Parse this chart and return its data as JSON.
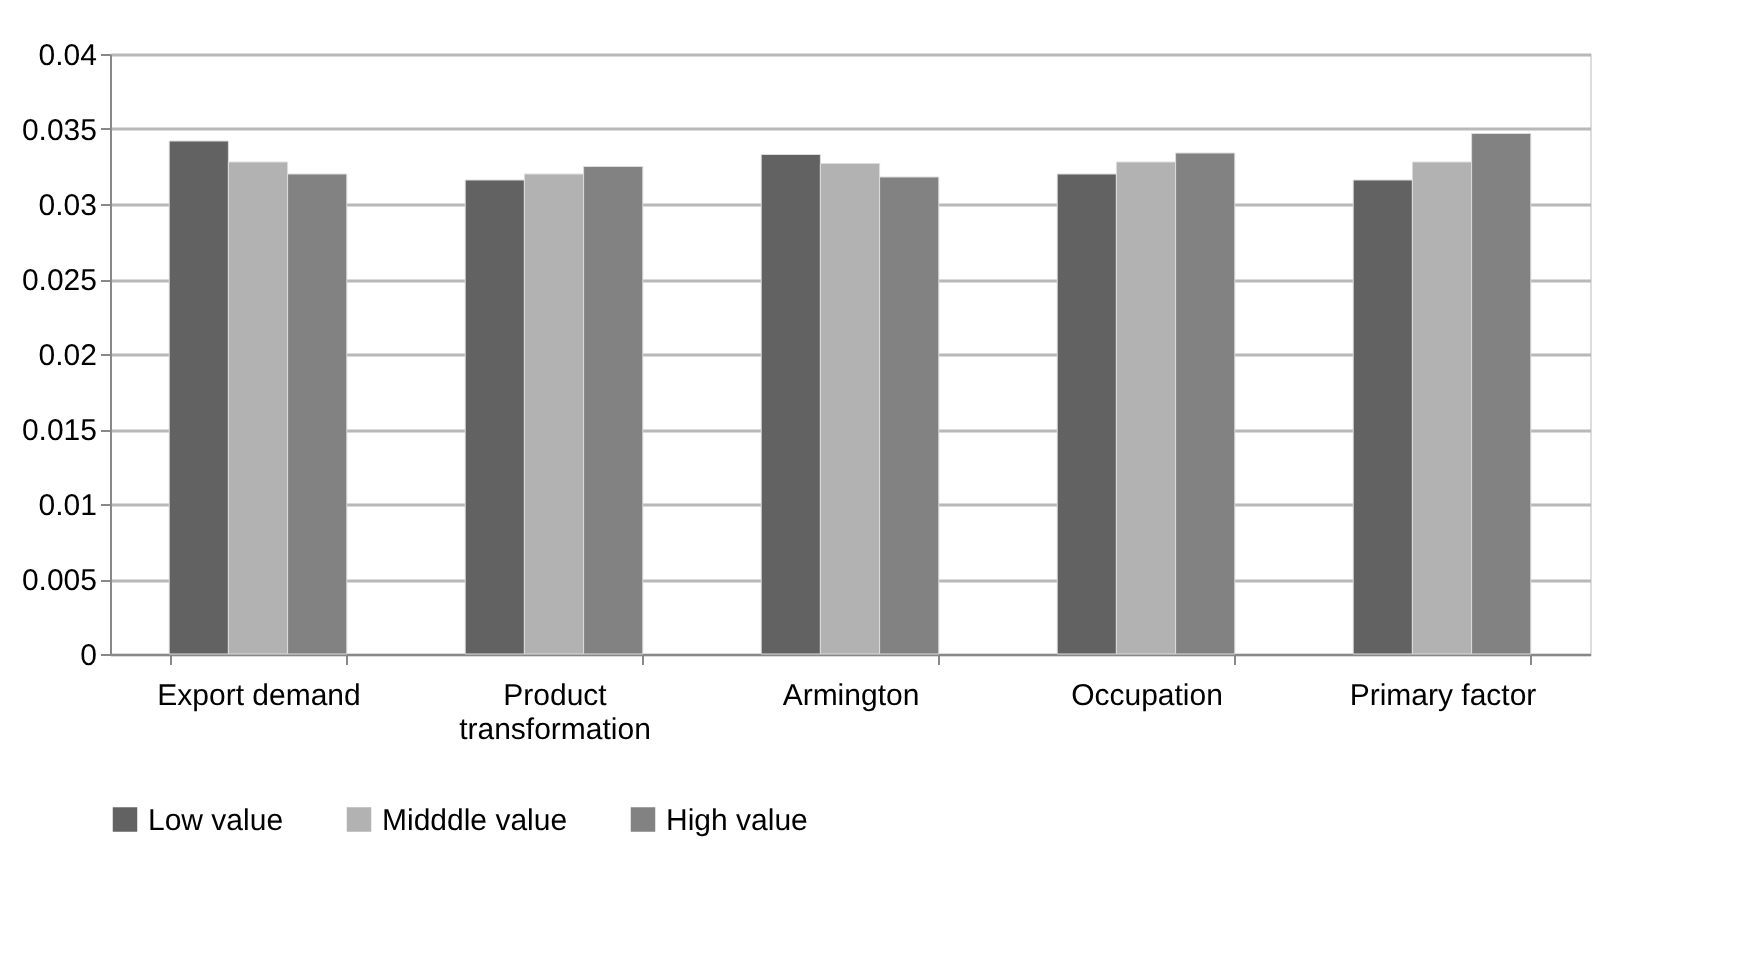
{
  "chart_data": {
    "type": "bar",
    "categories": [
      "Export demand",
      "Product transformation",
      "Armington",
      "Occupation",
      "Primary factor"
    ],
    "series": [
      {
        "name": "Low value",
        "color": "#626262",
        "values": [
          0.0342,
          0.0316,
          0.0333,
          0.032,
          0.0316
        ]
      },
      {
        "name": "Midddle value",
        "color": "#b2b2b2",
        "values": [
          0.0328,
          0.032,
          0.0327,
          0.0328,
          0.0328
        ]
      },
      {
        "name": "High value",
        "color": "#828282",
        "values": [
          0.032,
          0.0325,
          0.0318,
          0.0334,
          0.0347
        ]
      }
    ],
    "ylim": [
      0,
      0.04
    ],
    "yticks": [
      0,
      0.005,
      0.01,
      0.015,
      0.02,
      0.025,
      0.03,
      0.035,
      0.04
    ],
    "grid": "y",
    "legend": "bottom"
  }
}
